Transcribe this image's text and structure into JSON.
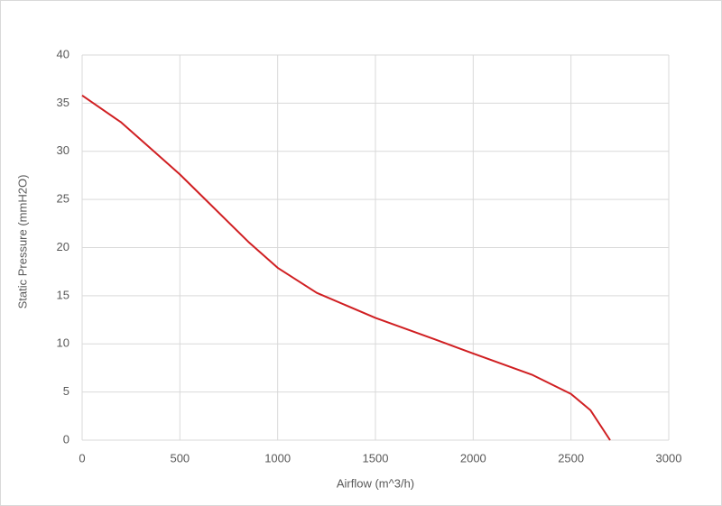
{
  "chart_data": {
    "type": "line",
    "x_label": "Airflow (m^3/h)",
    "y_label": "Static Pressure (mmH2O)",
    "x": [
      0,
      200,
      350,
      500,
      650,
      850,
      1000,
      1200,
      1500,
      1800,
      2000,
      2300,
      2500,
      2600,
      2700
    ],
    "series": [
      {
        "color": "#d01f22",
        "values": [
          35.8,
          33.0,
          30.3,
          27.6,
          24.6,
          20.6,
          17.9,
          15.3,
          12.7,
          10.5,
          9.0,
          6.8,
          4.8,
          3.1,
          0
        ]
      }
    ],
    "xlim": [
      0,
      3000
    ],
    "xticks": [
      0,
      500,
      1000,
      1500,
      2000,
      2500,
      3000
    ],
    "ylim": [
      0,
      40
    ],
    "yticks": [
      0,
      5,
      10,
      15,
      20,
      25,
      30,
      35,
      40
    ],
    "grid": true
  }
}
